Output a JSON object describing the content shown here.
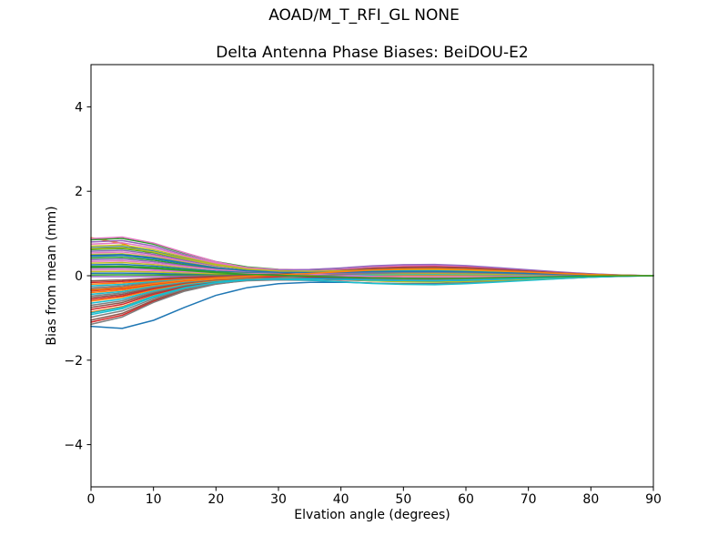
{
  "figure": {
    "suptitle": "AOAD/M_T_RFI_GL NONE"
  },
  "chart_data": {
    "type": "line",
    "title": "Delta Antenna Phase Biases: BeiDOU-E2",
    "xlabel": "Elvation angle (degrees)",
    "ylabel": "Bias from mean (mm)",
    "xlim": [
      0,
      90
    ],
    "ylim": [
      -5,
      5
    ],
    "xtick_values": [
      0,
      10,
      20,
      30,
      40,
      50,
      60,
      70,
      80,
      90
    ],
    "xtick_labels": [
      "0",
      "10",
      "20",
      "30",
      "40",
      "50",
      "60",
      "70",
      "80",
      "90"
    ],
    "ytick_values": [
      -4,
      -2,
      0,
      2,
      4
    ],
    "ytick_labels": [
      "−4",
      "−2",
      "0",
      "2",
      "4"
    ],
    "grid": false,
    "legend": "none",
    "background": "#ffffff",
    "spine_color": "#000000",
    "line_width": 1.5,
    "model": "Each antenna-bias line: y(e) = start * decay(e) + mid * bump(e) in mm; series i uses decay_profiles[i mod 2]; all lines converge to 0 mm at 90 degrees",
    "x_samples": [
      0,
      5,
      10,
      15,
      20,
      25,
      30,
      35,
      40,
      45,
      50,
      55,
      60,
      65,
      70,
      75,
      80,
      85,
      90
    ],
    "decay_profiles": [
      [
        1.0,
        1.04,
        0.88,
        0.62,
        0.38,
        0.22,
        0.13,
        0.08,
        0.05,
        0.04,
        0.035,
        0.03,
        0.025,
        0.02,
        0.018,
        0.014,
        0.01,
        0.005,
        0.0
      ],
      [
        1.0,
        0.85,
        0.55,
        0.32,
        0.18,
        0.1,
        0.06,
        0.04,
        0.03,
        0.025,
        0.02,
        0.02,
        0.015,
        0.012,
        0.01,
        0.008,
        0.005,
        0.003,
        0.0
      ]
    ],
    "bump_profile": [
      0,
      0,
      0,
      0.02,
      0.06,
      0.12,
      0.22,
      0.4,
      0.62,
      0.84,
      0.96,
      1.0,
      0.9,
      0.72,
      0.52,
      0.32,
      0.16,
      0.05,
      0.0
    ],
    "color_cycle": [
      "#1f77b4",
      "#ff7f0e",
      "#2ca02c",
      "#d62728",
      "#9467bd",
      "#8c564b",
      "#e377c2",
      "#7f7f7f",
      "#bcbd22",
      "#17becf"
    ],
    "series_starts": [
      -1.2,
      0.9,
      0.85,
      -1.1,
      0.8,
      -1.05,
      0.75,
      -0.98,
      0.7,
      -0.92,
      0.66,
      -0.86,
      0.62,
      -0.8,
      0.58,
      -0.75,
      0.54,
      -0.7,
      0.5,
      -0.65,
      0.46,
      -0.6,
      0.42,
      -0.56,
      0.38,
      -0.52,
      0.34,
      -0.48,
      0.3,
      -0.44,
      0.26,
      -0.4,
      0.22,
      -0.36,
      0.18,
      -0.32,
      0.14,
      -0.28,
      0.1,
      -0.24,
      0.06,
      -0.2,
      0.02,
      -0.16,
      -0.02,
      -0.12,
      0.88,
      -1.15,
      0.64,
      -0.88,
      0.48,
      -0.34,
      0.2
    ],
    "series_mids": [
      -0.15,
      0.1,
      0.18,
      0.05,
      -0.1,
      0.12,
      0.22,
      -0.18,
      0.08,
      0.15,
      -0.05,
      0.2,
      0.12,
      -0.12,
      0.25,
      0.06,
      -0.08,
      0.16,
      0.1,
      -0.2,
      0.14,
      0.02,
      -0.14,
      0.18,
      0.06,
      -0.06,
      0.2,
      0.1,
      -0.16,
      0.04,
      0.15,
      -0.1,
      0.08,
      0.22,
      -0.04,
      0.12,
      0.18,
      -0.08,
      0.05,
      0.14,
      -0.12,
      0.08,
      0.16,
      -0.05,
      0.1,
      0.2,
      -0.06,
      0.1,
      0.13,
      -0.1,
      0.09,
      0.17,
      -0.07
    ]
  }
}
